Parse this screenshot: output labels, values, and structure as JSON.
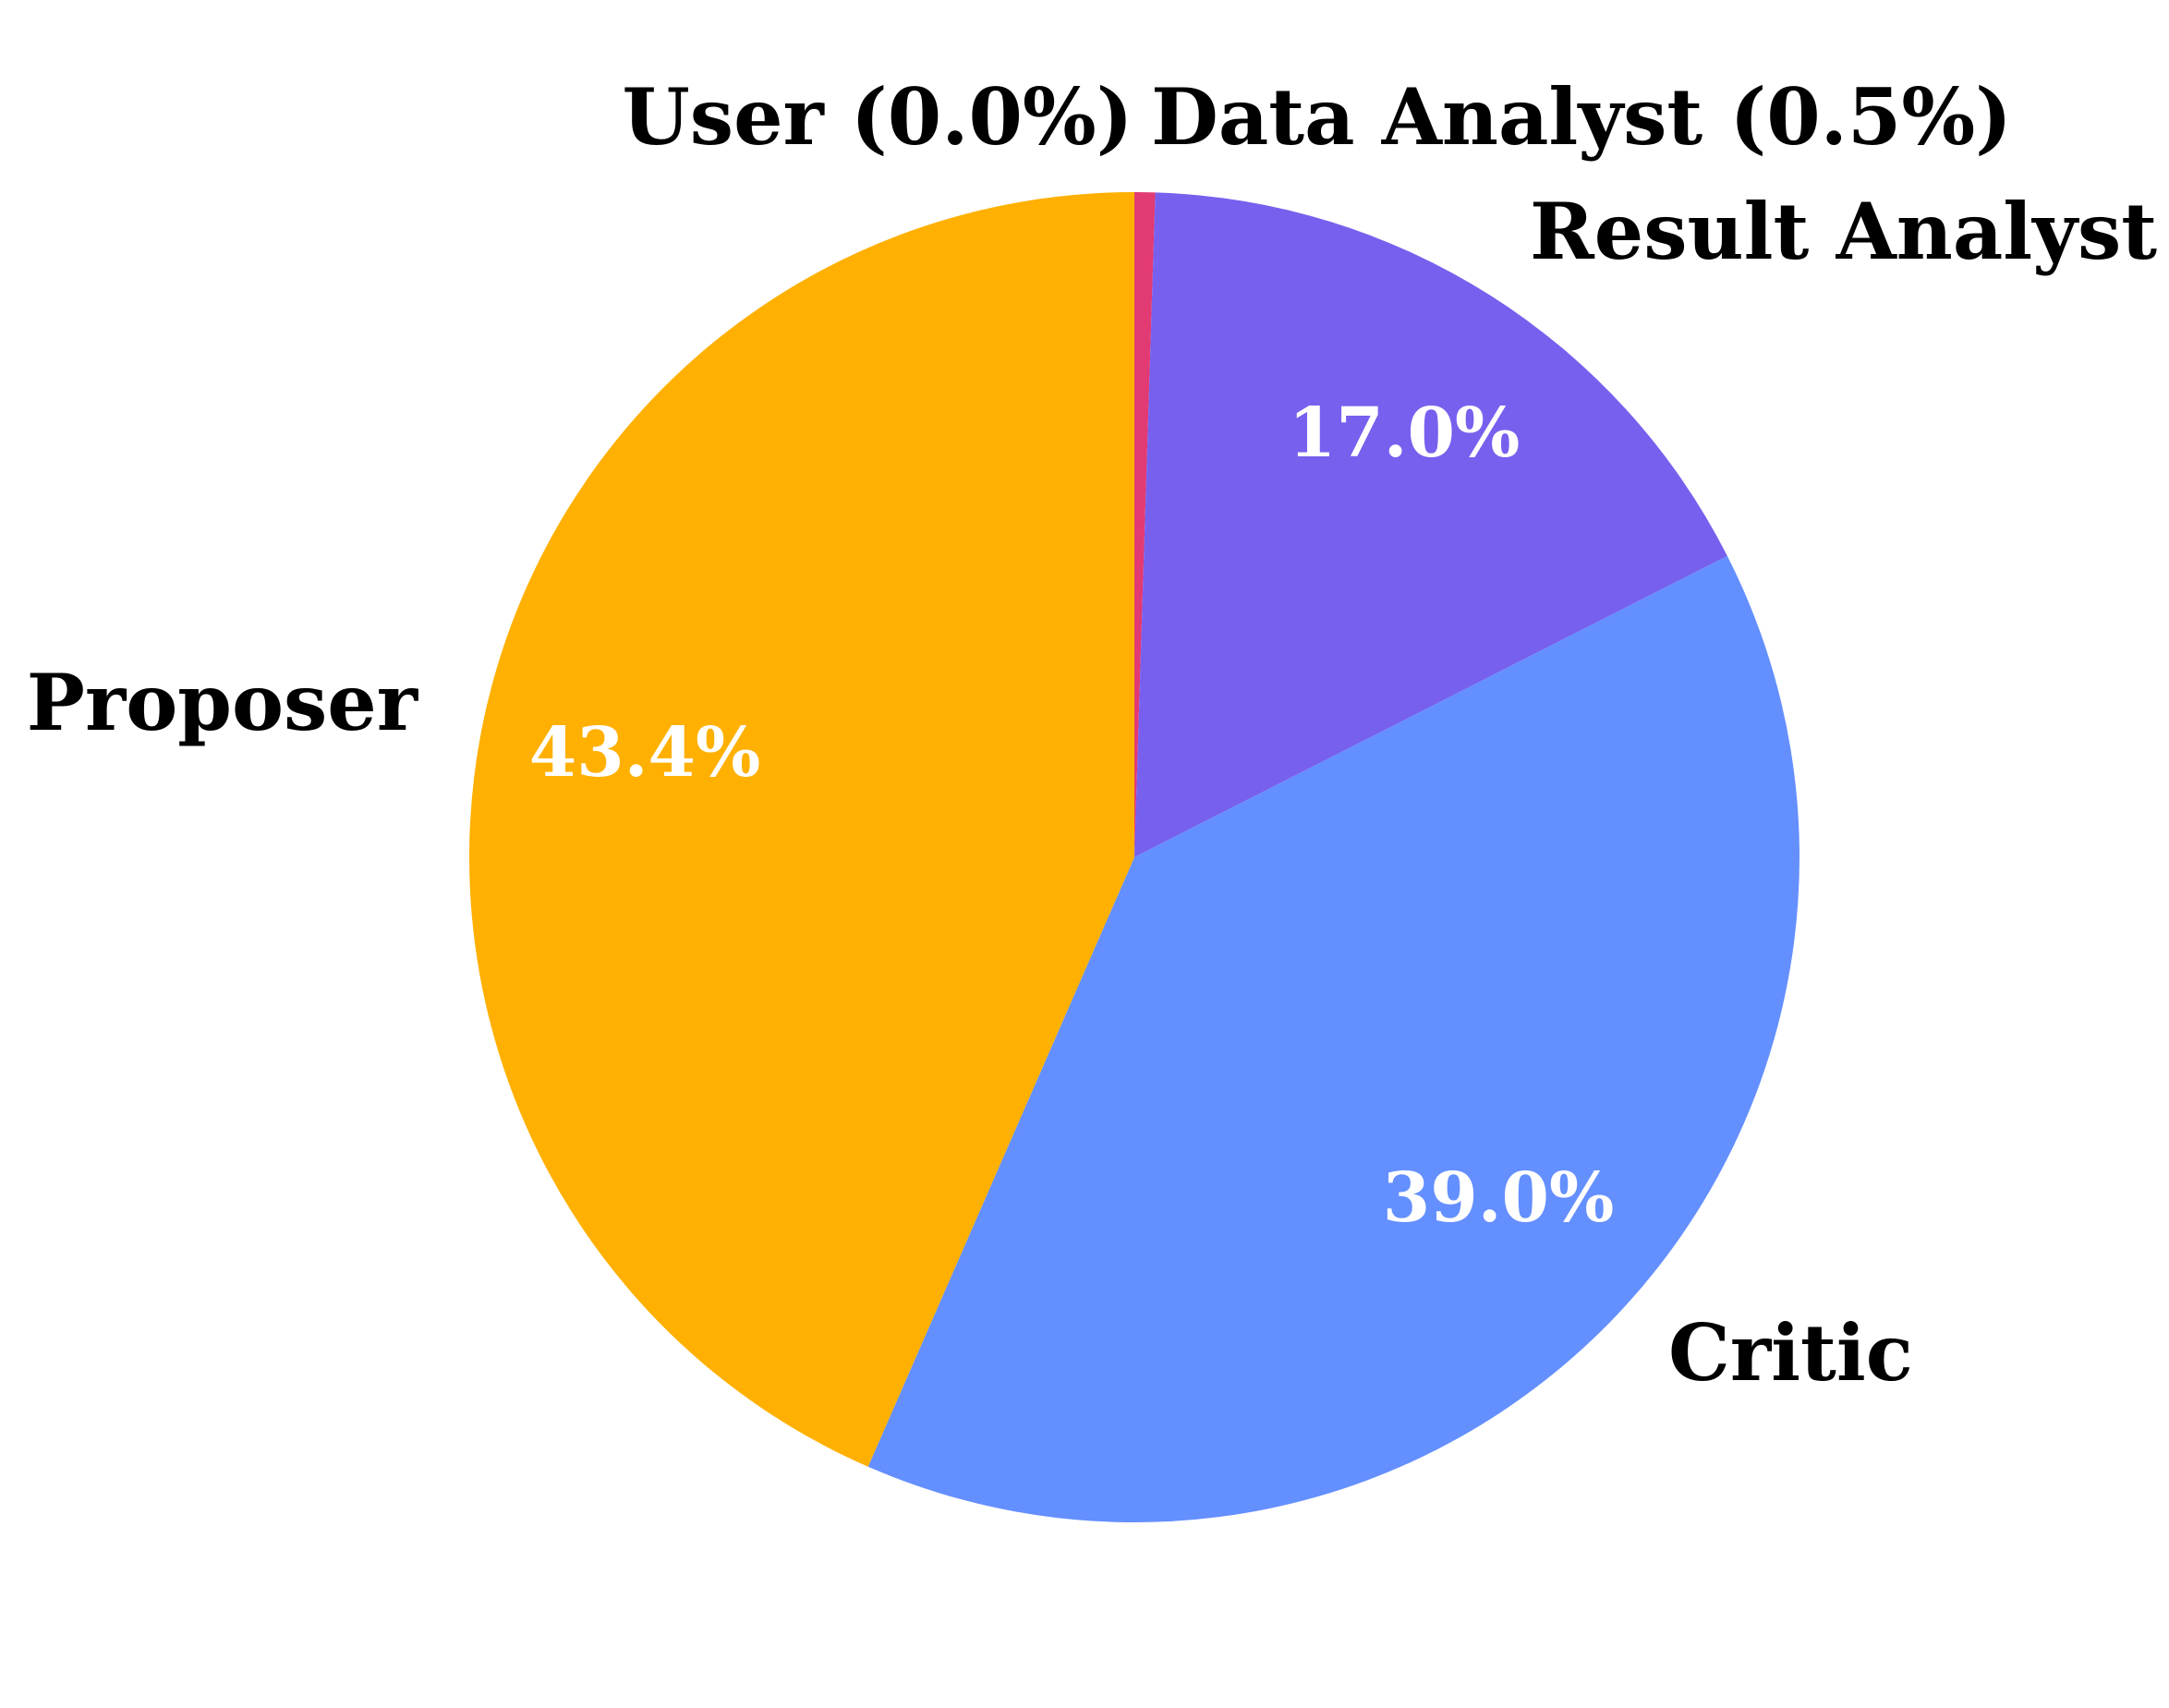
{
  "chart_data": {
    "type": "pie",
    "title": "",
    "slices": [
      {
        "label": "User (0.0%)",
        "value": 0.0,
        "pct_label": "",
        "color": "#e8336d"
      },
      {
        "label": "Data Analyst (0.5%)",
        "value": 0.5,
        "pct_label": "",
        "color": "#e23a73"
      },
      {
        "label": "Result Analyst",
        "value": 17.0,
        "pct_label": "17.0%",
        "color": "#7760ee"
      },
      {
        "label": "Critic",
        "value": 39.0,
        "pct_label": "39.0%",
        "color": "#648fff"
      },
      {
        "label": "Proposer",
        "value": 43.4,
        "pct_label": "43.4%",
        "color": "#ffb000"
      }
    ],
    "start_angle": "top",
    "direction": "clockwise",
    "legend": "none"
  }
}
